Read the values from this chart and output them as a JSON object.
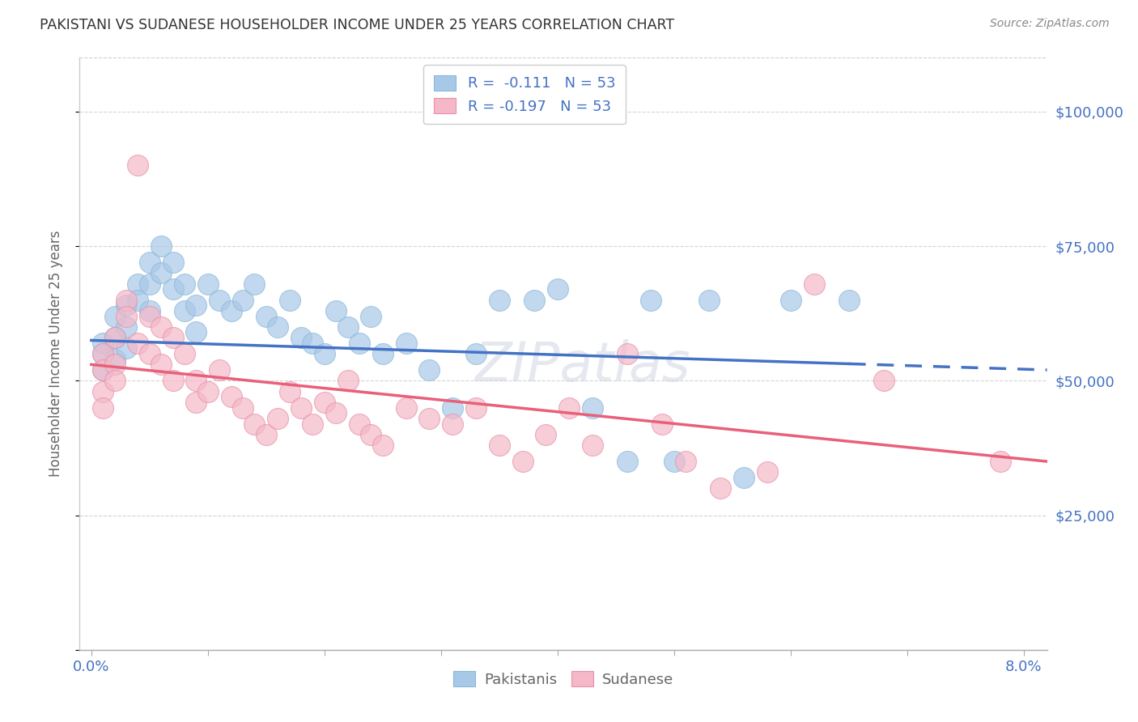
{
  "title": "PAKISTANI VS SUDANESE HOUSEHOLDER INCOME UNDER 25 YEARS CORRELATION CHART",
  "source": "Source: ZipAtlas.com",
  "ylabel": "Householder Income Under 25 years",
  "ylim": [
    0,
    110000
  ],
  "xlim": [
    -0.001,
    0.082
  ],
  "yticks": [
    0,
    25000,
    50000,
    75000,
    100000
  ],
  "ytick_labels": [
    "",
    "$25,000",
    "$50,000",
    "$75,000",
    "$100,000"
  ],
  "xtick_positions": [
    0.0,
    0.01,
    0.02,
    0.03,
    0.04,
    0.05,
    0.06,
    0.07,
    0.08
  ],
  "xtick_label_positions": [
    0.0,
    0.08
  ],
  "xtick_label_texts": [
    "0.0%",
    "8.0%"
  ],
  "blue_color": "#a8c8e8",
  "pink_color": "#f5b8c8",
  "line_blue": "#4472c4",
  "line_pink": "#e8607a",
  "title_color": "#333333",
  "tick_color_right": "#4472c4",
  "legend_R_color": "#4472c4",
  "R_pakistani": -0.111,
  "R_sudanese": -0.197,
  "N_pakistani": 53,
  "N_sudanese": 53,
  "blue_line_solid_end": 0.065,
  "pakistani_x": [
    0.001,
    0.001,
    0.001,
    0.002,
    0.002,
    0.002,
    0.003,
    0.003,
    0.003,
    0.004,
    0.004,
    0.005,
    0.005,
    0.005,
    0.006,
    0.006,
    0.007,
    0.007,
    0.008,
    0.008,
    0.009,
    0.009,
    0.01,
    0.011,
    0.012,
    0.013,
    0.014,
    0.015,
    0.016,
    0.017,
    0.018,
    0.019,
    0.02,
    0.021,
    0.022,
    0.023,
    0.024,
    0.025,
    0.027,
    0.029,
    0.031,
    0.033,
    0.035,
    0.038,
    0.04,
    0.043,
    0.046,
    0.048,
    0.05,
    0.053,
    0.056,
    0.06,
    0.065
  ],
  "pakistani_y": [
    57000,
    55000,
    52000,
    62000,
    58000,
    54000,
    64000,
    60000,
    56000,
    68000,
    65000,
    72000,
    68000,
    63000,
    75000,
    70000,
    72000,
    67000,
    68000,
    63000,
    64000,
    59000,
    68000,
    65000,
    63000,
    65000,
    68000,
    62000,
    60000,
    65000,
    58000,
    57000,
    55000,
    63000,
    60000,
    57000,
    62000,
    55000,
    57000,
    52000,
    45000,
    55000,
    65000,
    65000,
    67000,
    45000,
    35000,
    65000,
    35000,
    65000,
    32000,
    65000,
    65000
  ],
  "sudanese_x": [
    0.001,
    0.001,
    0.001,
    0.001,
    0.002,
    0.002,
    0.002,
    0.003,
    0.003,
    0.004,
    0.004,
    0.005,
    0.005,
    0.006,
    0.006,
    0.007,
    0.007,
    0.008,
    0.009,
    0.009,
    0.01,
    0.011,
    0.012,
    0.013,
    0.014,
    0.015,
    0.016,
    0.017,
    0.018,
    0.019,
    0.02,
    0.021,
    0.022,
    0.023,
    0.024,
    0.025,
    0.027,
    0.029,
    0.031,
    0.033,
    0.035,
    0.037,
    0.039,
    0.041,
    0.043,
    0.046,
    0.049,
    0.051,
    0.054,
    0.058,
    0.062,
    0.068,
    0.078
  ],
  "sudanese_y": [
    55000,
    52000,
    48000,
    45000,
    58000,
    53000,
    50000,
    65000,
    62000,
    90000,
    57000,
    62000,
    55000,
    60000,
    53000,
    58000,
    50000,
    55000,
    50000,
    46000,
    48000,
    52000,
    47000,
    45000,
    42000,
    40000,
    43000,
    48000,
    45000,
    42000,
    46000,
    44000,
    50000,
    42000,
    40000,
    38000,
    45000,
    43000,
    42000,
    45000,
    38000,
    35000,
    40000,
    45000,
    38000,
    55000,
    42000,
    35000,
    30000,
    33000,
    68000,
    50000,
    35000
  ],
  "background_color": "#ffffff",
  "grid_color": "#d0d0d0",
  "watermark": "ZIPatlas"
}
